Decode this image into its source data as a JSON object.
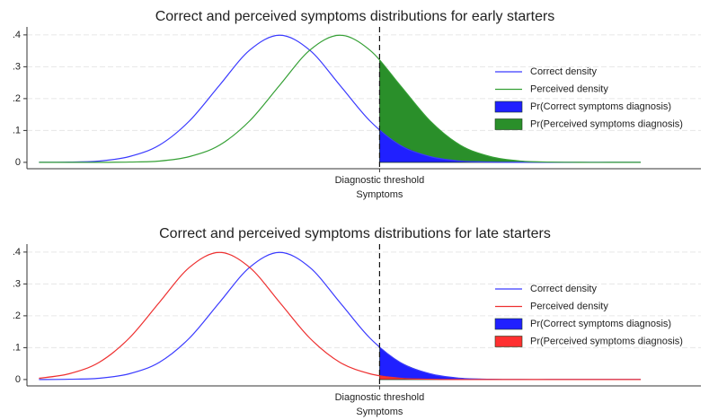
{
  "chart_data": [
    {
      "type": "line",
      "title": "Correct and perceived symptoms distributions for early starters",
      "x_label": "Symptoms",
      "x": [
        -4,
        -3.5,
        -3,
        -2.5,
        -2,
        -1.5,
        -1,
        -0.5,
        0,
        0.5,
        1,
        1.5,
        2,
        2.5,
        3,
        3.5,
        4,
        4.5,
        5,
        5.5,
        6
      ],
      "xlim": [
        -4.2,
        7.0
      ],
      "xticks": [
        {
          "value": 1.66,
          "label": "Diagnostic threshold"
        }
      ],
      "ylim": [
        -0.02,
        0.425
      ],
      "yticks": [
        0,
        {
          "value": 0.1,
          "label": ".1"
        },
        {
          "value": 0.2,
          "label": ".2"
        },
        {
          "value": 0.3,
          "label": ".3"
        },
        {
          "value": 0.4,
          "label": ".4"
        }
      ],
      "grid": true,
      "series": [
        {
          "name": "Correct density",
          "type": "line",
          "color": "#3a3aff",
          "values": [
            0,
            0.001,
            0.004,
            0.018,
            0.054,
            0.13,
            0.242,
            0.352,
            0.399,
            0.352,
            0.242,
            0.13,
            0.054,
            0.018,
            0.004,
            0.001,
            0,
            0,
            0,
            0,
            0
          ]
        },
        {
          "name": "Perceived density",
          "type": "line",
          "color": "#35a035",
          "values": [
            0,
            0,
            0,
            0.001,
            0.004,
            0.018,
            0.054,
            0.13,
            0.242,
            0.352,
            0.399,
            0.352,
            0.242,
            0.13,
            0.054,
            0.018,
            0.004,
            0.001,
            0,
            0,
            0
          ]
        },
        {
          "name": "Pr(Correct symptoms diagnosis)",
          "type": "area",
          "color": "#2020ff",
          "x": [
            1.66,
            2,
            2.5,
            3,
            3.5,
            4,
            4.5,
            5
          ],
          "values": [
            0.1,
            0.054,
            0.018,
            0.004,
            0.001,
            0,
            0,
            0
          ]
        },
        {
          "name": "Pr(Perceived symptoms diagnosis)",
          "type": "area",
          "color": "#2a8f2a",
          "x": [
            1.66,
            2,
            2.5,
            3,
            3.5,
            4,
            4.5,
            5
          ],
          "values": [
            0.321,
            0.242,
            0.13,
            0.054,
            0.018,
            0.004,
            0.001,
            0
          ]
        }
      ]
    },
    {
      "type": "line",
      "title": "Correct and perceived symptoms distributions for late starters",
      "x_label": "Symptoms",
      "x": [
        -4,
        -3.5,
        -3,
        -2.5,
        -2,
        -1.5,
        -1,
        -0.5,
        0,
        0.5,
        1,
        1.5,
        2,
        2.5,
        3,
        3.5,
        4,
        4.5,
        5,
        5.5,
        6
      ],
      "xlim": [
        -4.2,
        7.0
      ],
      "xticks": [
        {
          "value": 1.66,
          "label": "Diagnostic threshold"
        }
      ],
      "ylim": [
        -0.02,
        0.425
      ],
      "yticks": [
        0,
        {
          "value": 0.1,
          "label": ".1"
        },
        {
          "value": 0.2,
          "label": ".2"
        },
        {
          "value": 0.3,
          "label": ".3"
        },
        {
          "value": 0.4,
          "label": ".4"
        }
      ],
      "grid": true,
      "series": [
        {
          "name": "Correct density",
          "type": "line",
          "color": "#3a3aff",
          "values": [
            0,
            0.001,
            0.004,
            0.018,
            0.054,
            0.13,
            0.242,
            0.352,
            0.399,
            0.352,
            0.242,
            0.13,
            0.054,
            0.018,
            0.004,
            0.001,
            0,
            0,
            0,
            0,
            0
          ]
        },
        {
          "name": "Perceived density",
          "type": "line",
          "color": "#ee3030",
          "values": [
            0.004,
            0.018,
            0.054,
            0.13,
            0.242,
            0.352,
            0.399,
            0.352,
            0.242,
            0.13,
            0.054,
            0.018,
            0.004,
            0.001,
            0,
            0,
            0,
            0,
            0,
            0,
            0
          ]
        },
        {
          "name": "Pr(Correct symptoms diagnosis)",
          "type": "area",
          "color": "#2020ff",
          "x": [
            1.66,
            2,
            2.5,
            3,
            3.5,
            4,
            4.5,
            5
          ],
          "values": [
            0.1,
            0.054,
            0.018,
            0.004,
            0.001,
            0,
            0,
            0
          ]
        },
        {
          "name": "Pr(Perceived symptoms diagnosis)",
          "type": "area",
          "color": "#ff3030",
          "x": [
            1.66,
            2,
            2.5,
            3,
            3.5,
            4,
            4.5,
            5
          ],
          "values": [
            0.012,
            0.004,
            0.001,
            0,
            0,
            0,
            0,
            0
          ]
        }
      ]
    }
  ]
}
